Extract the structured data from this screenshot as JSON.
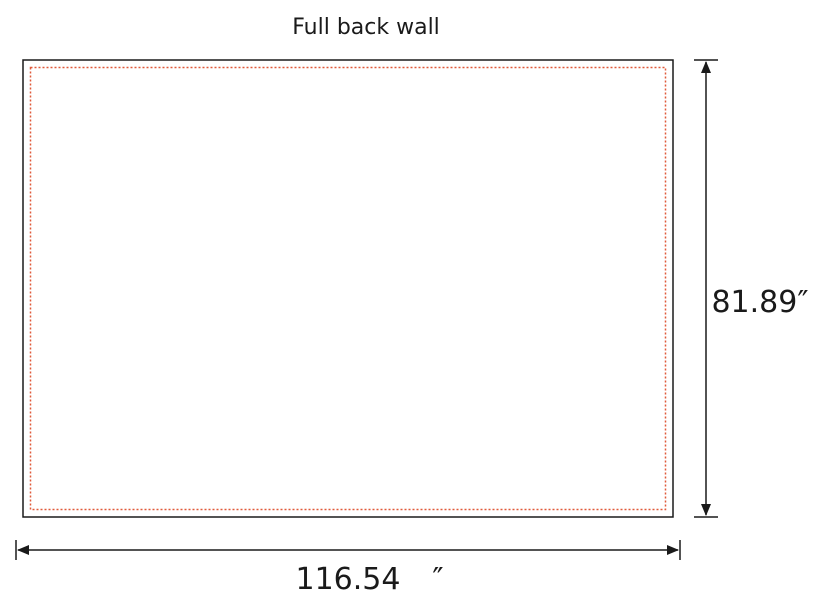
{
  "title": "Full back wall",
  "dimensions": {
    "width_value": "116.54",
    "width_unit": "″",
    "height_label": "81.89″"
  },
  "colors": {
    "outline": "#1a1a1a",
    "bleed_line": "#e05a3a"
  }
}
